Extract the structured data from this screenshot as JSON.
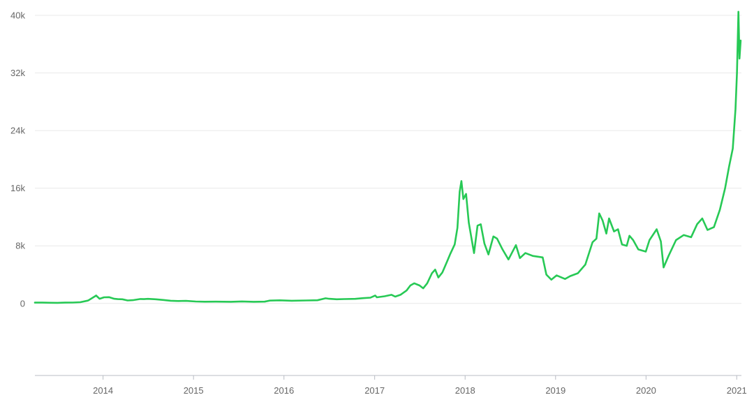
{
  "chart_data": {
    "type": "line",
    "title": "",
    "xlabel": "",
    "ylabel": "",
    "ylim": [
      -10000,
      40000
    ],
    "xlim": [
      "2013-04-01",
      "2021-01-20"
    ],
    "grid": true,
    "legend": "none",
    "y_ticks": [
      {
        "value": 0,
        "label": "0"
      },
      {
        "value": 8000,
        "label": "8k"
      },
      {
        "value": 16000,
        "label": "16k"
      },
      {
        "value": 24000,
        "label": "24k"
      },
      {
        "value": 32000,
        "label": "32k"
      },
      {
        "value": 40000,
        "label": "40k"
      }
    ],
    "x_ticks": [
      {
        "value": "2014-01-01",
        "label": "2014"
      },
      {
        "value": "2015-01-01",
        "label": "2015"
      },
      {
        "value": "2016-01-01",
        "label": "2016"
      },
      {
        "value": "2017-01-01",
        "label": "2017"
      },
      {
        "value": "2018-01-01",
        "label": "2018"
      },
      {
        "value": "2019-01-01",
        "label": "2019"
      },
      {
        "value": "2020-01-01",
        "label": "2020"
      },
      {
        "value": "2021-01-01",
        "label": "2021"
      }
    ],
    "series": [
      {
        "color": "#27c955",
        "points": [
          [
            "2013-04-01",
            120
          ],
          [
            "2013-05-01",
            117
          ],
          [
            "2013-06-01",
            100
          ],
          [
            "2013-07-01",
            90
          ],
          [
            "2013-08-01",
            120
          ],
          [
            "2013-09-01",
            130
          ],
          [
            "2013-10-01",
            170
          ],
          [
            "2013-11-01",
            400
          ],
          [
            "2013-11-25",
            900
          ],
          [
            "2013-12-04",
            1100
          ],
          [
            "2013-12-18",
            650
          ],
          [
            "2014-01-05",
            850
          ],
          [
            "2014-01-25",
            870
          ],
          [
            "2014-02-15",
            650
          ],
          [
            "2014-03-01",
            600
          ],
          [
            "2014-03-20",
            580
          ],
          [
            "2014-04-10",
            420
          ],
          [
            "2014-05-01",
            460
          ],
          [
            "2014-06-01",
            620
          ],
          [
            "2014-06-15",
            600
          ],
          [
            "2014-07-01",
            640
          ],
          [
            "2014-08-01",
            580
          ],
          [
            "2014-09-01",
            480
          ],
          [
            "2014-10-01",
            380
          ],
          [
            "2014-11-01",
            340
          ],
          [
            "2014-12-01",
            360
          ],
          [
            "2015-01-10",
            270
          ],
          [
            "2015-02-15",
            240
          ],
          [
            "2015-04-01",
            250
          ],
          [
            "2015-06-01",
            230
          ],
          [
            "2015-07-15",
            280
          ],
          [
            "2015-09-01",
            230
          ],
          [
            "2015-10-15",
            250
          ],
          [
            "2015-11-05",
            400
          ],
          [
            "2015-12-15",
            440
          ],
          [
            "2016-02-01",
            380
          ],
          [
            "2016-04-01",
            420
          ],
          [
            "2016-05-15",
            450
          ],
          [
            "2016-06-17",
            720
          ],
          [
            "2016-07-01",
            650
          ],
          [
            "2016-08-01",
            580
          ],
          [
            "2016-09-01",
            610
          ],
          [
            "2016-10-15",
            640
          ],
          [
            "2016-11-15",
            740
          ],
          [
            "2016-12-15",
            800
          ],
          [
            "2017-01-03",
            1100
          ],
          [
            "2017-01-10",
            850
          ],
          [
            "2017-02-10",
            1000
          ],
          [
            "2017-03-10",
            1200
          ],
          [
            "2017-03-25",
            950
          ],
          [
            "2017-04-15",
            1200
          ],
          [
            "2017-05-10",
            1800
          ],
          [
            "2017-05-25",
            2500
          ],
          [
            "2017-06-10",
            2800
          ],
          [
            "2017-07-01",
            2500
          ],
          [
            "2017-07-16",
            2100
          ],
          [
            "2017-08-01",
            2800
          ],
          [
            "2017-08-20",
            4200
          ],
          [
            "2017-09-02",
            4700
          ],
          [
            "2017-09-15",
            3600
          ],
          [
            "2017-10-01",
            4300
          ],
          [
            "2017-10-20",
            5800
          ],
          [
            "2017-11-01",
            6800
          ],
          [
            "2017-11-20",
            8200
          ],
          [
            "2017-12-01",
            10500
          ],
          [
            "2017-12-10",
            15500
          ],
          [
            "2017-12-17",
            17000
          ],
          [
            "2017-12-25",
            14500
          ],
          [
            "2018-01-05",
            15200
          ],
          [
            "2018-01-16",
            11200
          ],
          [
            "2018-02-06",
            7000
          ],
          [
            "2018-02-20",
            10800
          ],
          [
            "2018-03-05",
            11000
          ],
          [
            "2018-03-20",
            8300
          ],
          [
            "2018-04-05",
            6800
          ],
          [
            "2018-04-25",
            9300
          ],
          [
            "2018-05-10",
            9000
          ],
          [
            "2018-06-01",
            7500
          ],
          [
            "2018-06-25",
            6100
          ],
          [
            "2018-07-25",
            8100
          ],
          [
            "2018-08-10",
            6300
          ],
          [
            "2018-09-01",
            7000
          ],
          [
            "2018-10-01",
            6600
          ],
          [
            "2018-11-10",
            6400
          ],
          [
            "2018-11-25",
            4000
          ],
          [
            "2018-12-15",
            3300
          ],
          [
            "2019-01-05",
            3900
          ],
          [
            "2019-02-08",
            3400
          ],
          [
            "2019-03-01",
            3800
          ],
          [
            "2019-04-01",
            4200
          ],
          [
            "2019-05-01",
            5400
          ],
          [
            "2019-05-30",
            8500
          ],
          [
            "2019-06-15",
            9000
          ],
          [
            "2019-06-26",
            12500
          ],
          [
            "2019-07-10",
            11500
          ],
          [
            "2019-07-25",
            9700
          ],
          [
            "2019-08-05",
            11800
          ],
          [
            "2019-08-25",
            10000
          ],
          [
            "2019-09-10",
            10300
          ],
          [
            "2019-09-26",
            8200
          ],
          [
            "2019-10-15",
            8000
          ],
          [
            "2019-10-26",
            9400
          ],
          [
            "2019-11-10",
            8800
          ],
          [
            "2019-12-01",
            7500
          ],
          [
            "2019-12-31",
            7200
          ],
          [
            "2020-01-15",
            8800
          ],
          [
            "2020-02-13",
            10300
          ],
          [
            "2020-03-01",
            8600
          ],
          [
            "2020-03-12",
            5000
          ],
          [
            "2020-04-01",
            6600
          ],
          [
            "2020-05-01",
            8800
          ],
          [
            "2020-06-01",
            9500
          ],
          [
            "2020-07-01",
            9200
          ],
          [
            "2020-07-25",
            11000
          ],
          [
            "2020-08-15",
            11800
          ],
          [
            "2020-09-05",
            10200
          ],
          [
            "2020-10-01",
            10600
          ],
          [
            "2020-10-25",
            13000
          ],
          [
            "2020-11-15",
            16000
          ],
          [
            "2020-12-01",
            19000
          ],
          [
            "2020-12-16",
            21500
          ],
          [
            "2020-12-27",
            27000
          ],
          [
            "2021-01-02",
            32000
          ],
          [
            "2021-01-08",
            40500
          ],
          [
            "2021-01-12",
            34000
          ],
          [
            "2021-01-17",
            36500
          ]
        ]
      }
    ]
  }
}
